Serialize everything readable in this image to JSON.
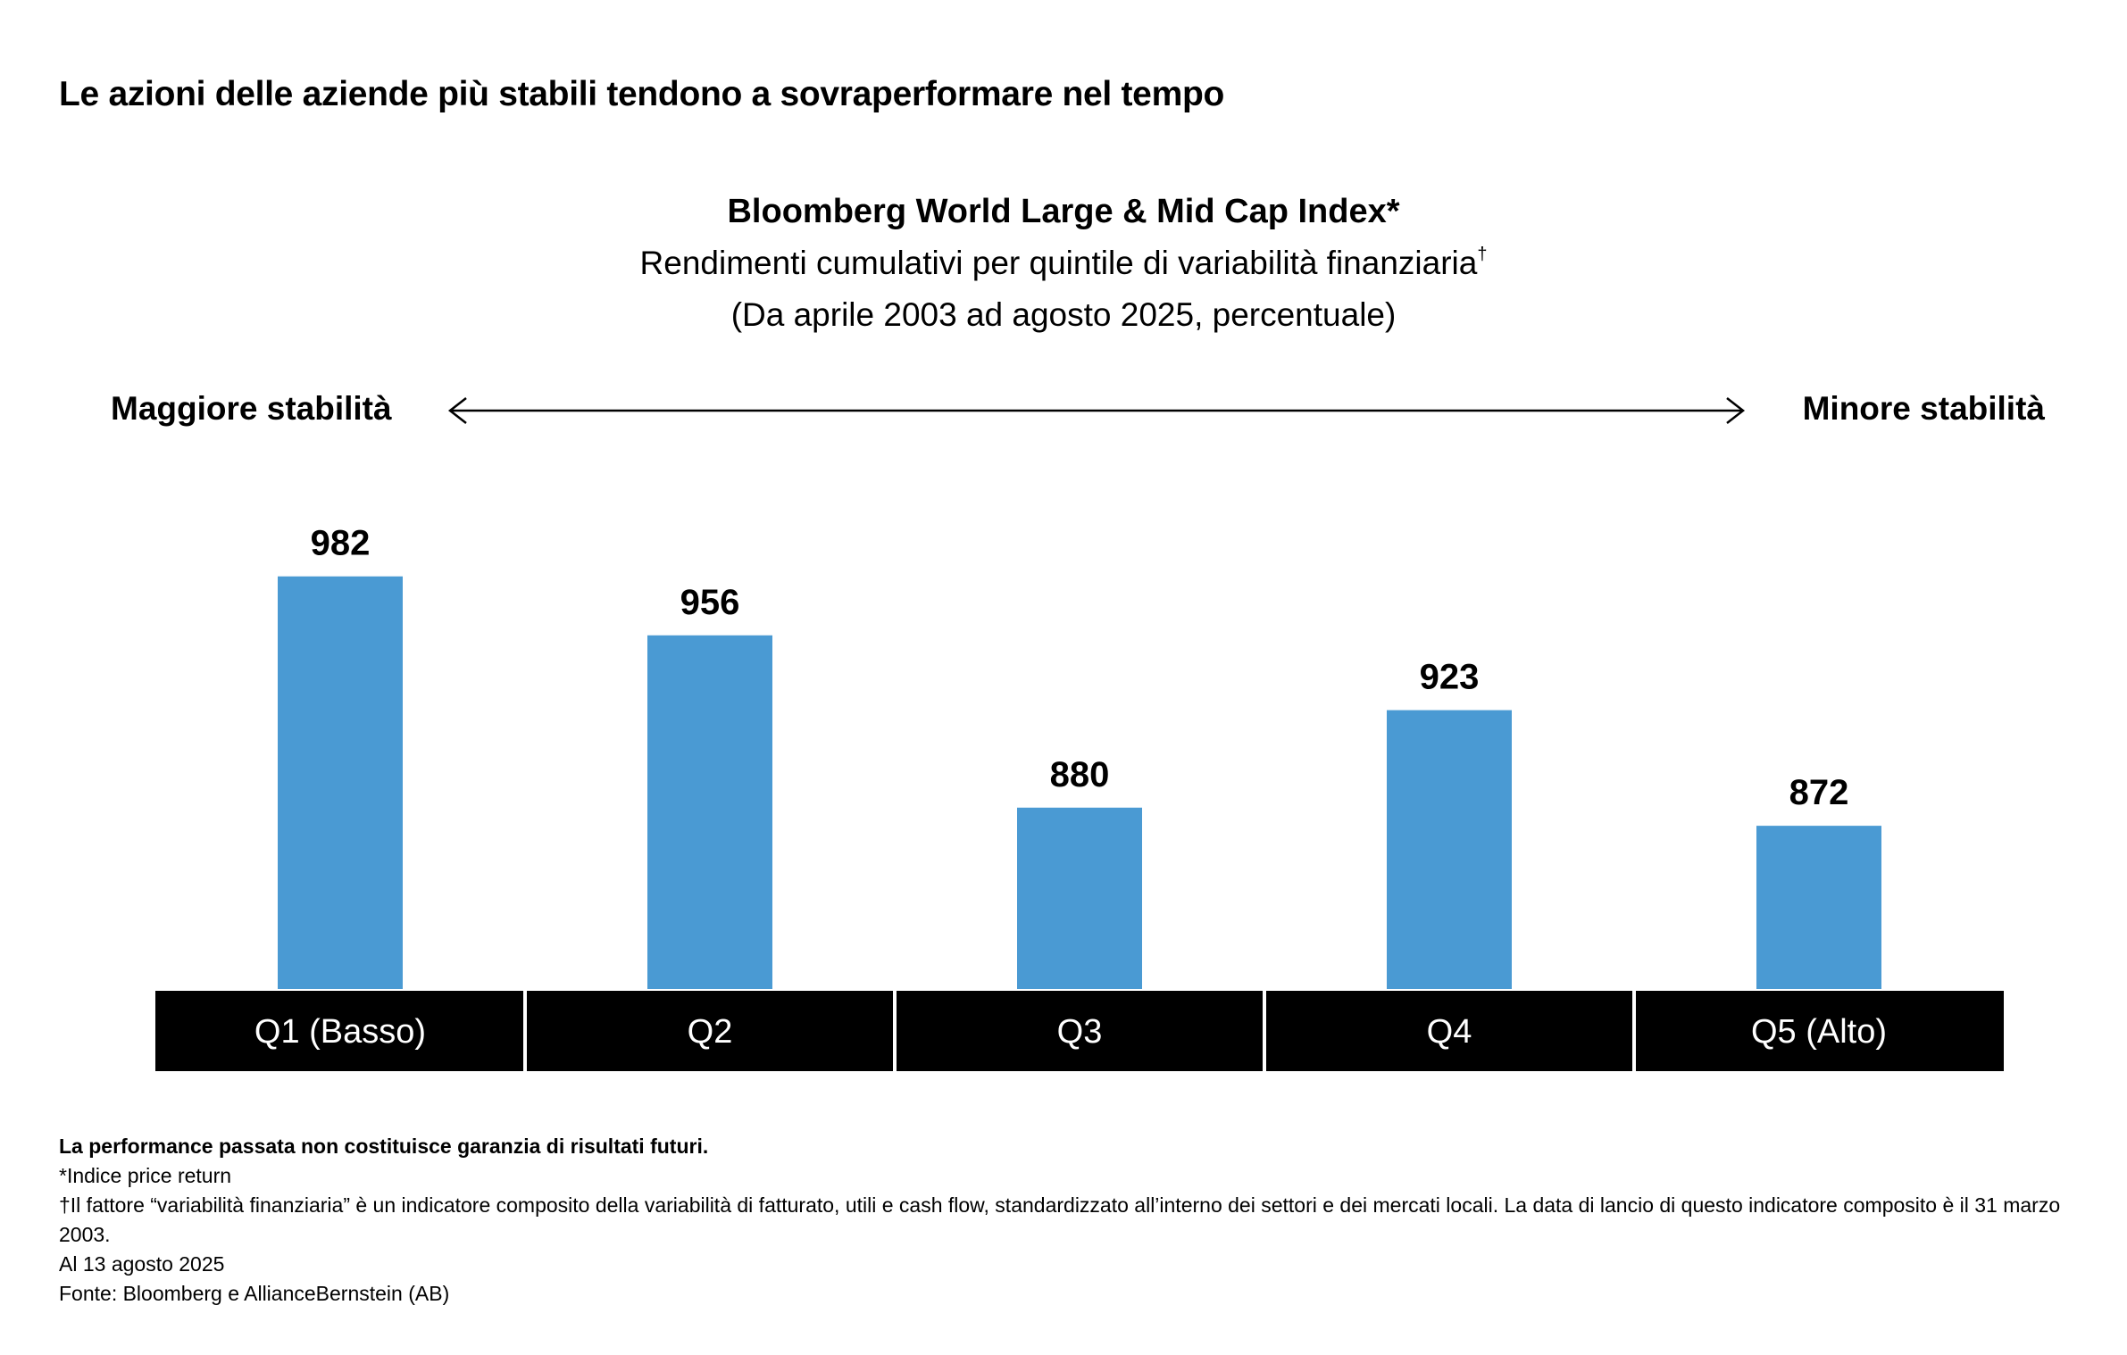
{
  "header": {
    "title": "Le azioni delle aziende più stabili tendono a sovraperformare nel tempo"
  },
  "chart_heading": {
    "title": "Bloomberg World Large & Mid Cap Index*",
    "subtitle": "Rendimenti cumulativi per quintile di variabilità finanziaria",
    "subtitle_mark": "†",
    "range": "(Da aprile 2003 ad agosto 2025, percentuale)"
  },
  "stability_axis": {
    "left_label": "Maggiore stabilità",
    "right_label": "Minore stabilità"
  },
  "chart_data": {
    "type": "bar",
    "categories": [
      "Q1 (Basso)",
      "Q2",
      "Q3",
      "Q4",
      "Q5 (Alto)"
    ],
    "values": [
      982,
      956,
      880,
      923,
      872
    ],
    "data_labels": [
      "982",
      "956",
      "880",
      "923",
      "872"
    ],
    "title": "Bloomberg World Large & Mid Cap Index*",
    "xlabel": "",
    "ylabel": "",
    "ylim": [
      800,
      1000
    ],
    "grid": false,
    "legend": "none"
  },
  "colors": {
    "bar": "#4a9ad3",
    "category_band": "#000000",
    "category_text": "#ffffff",
    "text": "#000000",
    "background": "#ffffff"
  },
  "footer": {
    "disclaimer": "La performance passata non costituisce garanzia di risultati futuri.",
    "note_index": "*Indice price return",
    "note_factor": "†Il fattore “variabilità finanziaria” è un indicatore composito della variabilità di fatturato, utili e cash flow, standardizzato all’interno dei settori e dei mercati locali. La data di lancio di questo indicatore composito è il 31 marzo 2003.",
    "as_of": "Al 13 agosto 2025",
    "source": "Fonte: Bloomberg e AllianceBernstein (AB)"
  }
}
